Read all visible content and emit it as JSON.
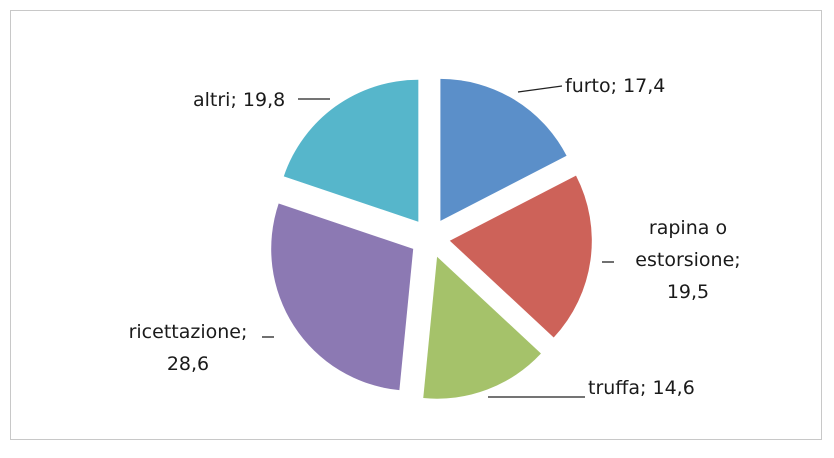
{
  "chart_data": {
    "type": "pie",
    "categories": [
      "furto",
      "rapina o estorsione",
      "truffa",
      "ricettazione",
      "altri"
    ],
    "values": [
      17.4,
      19.5,
      14.6,
      28.6,
      19.8
    ],
    "value_labels": [
      "17,4",
      "19,5",
      "14,6",
      "28,6",
      "19,8"
    ],
    "label_separator": "; ",
    "colors": [
      "#5b8fc9",
      "#cd6259",
      "#a5c26a",
      "#8c79b3",
      "#56b6cb"
    ],
    "exploded": true
  }
}
